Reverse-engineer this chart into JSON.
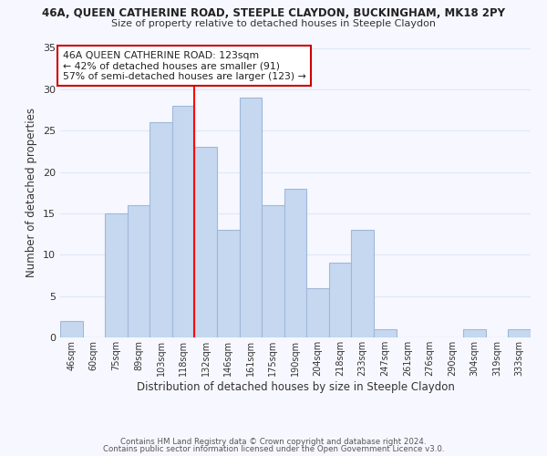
{
  "title": "46A, QUEEN CATHERINE ROAD, STEEPLE CLAYDON, BUCKINGHAM, MK18 2PY",
  "subtitle": "Size of property relative to detached houses in Steeple Claydon",
  "xlabel": "Distribution of detached houses by size in Steeple Claydon",
  "ylabel": "Number of detached properties",
  "bar_labels": [
    "46sqm",
    "60sqm",
    "75sqm",
    "89sqm",
    "103sqm",
    "118sqm",
    "132sqm",
    "146sqm",
    "161sqm",
    "175sqm",
    "190sqm",
    "204sqm",
    "218sqm",
    "233sqm",
    "247sqm",
    "261sqm",
    "276sqm",
    "290sqm",
    "304sqm",
    "319sqm",
    "333sqm"
  ],
  "bar_values": [
    2,
    0,
    15,
    16,
    26,
    28,
    23,
    13,
    29,
    16,
    18,
    6,
    9,
    13,
    1,
    0,
    0,
    0,
    1,
    0,
    1
  ],
  "bar_color": "#c5d8f0",
  "bar_edge_color": "#a0b8d8",
  "vline_x": 5.5,
  "vline_color": "red",
  "ylim": [
    0,
    35
  ],
  "yticks": [
    0,
    5,
    10,
    15,
    20,
    25,
    30,
    35
  ],
  "annotation_title": "46A QUEEN CATHERINE ROAD: 123sqm",
  "annotation_line1": "← 42% of detached houses are smaller (91)",
  "annotation_line2": "57% of semi-detached houses are larger (123) →",
  "box_color": "#ffffff",
  "box_edge_color": "#cc0000",
  "footer1": "Contains HM Land Registry data © Crown copyright and database right 2024.",
  "footer2": "Contains public sector information licensed under the Open Government Licence v3.0.",
  "bg_color": "#f7f7ff",
  "grid_color": "#dde8f5"
}
